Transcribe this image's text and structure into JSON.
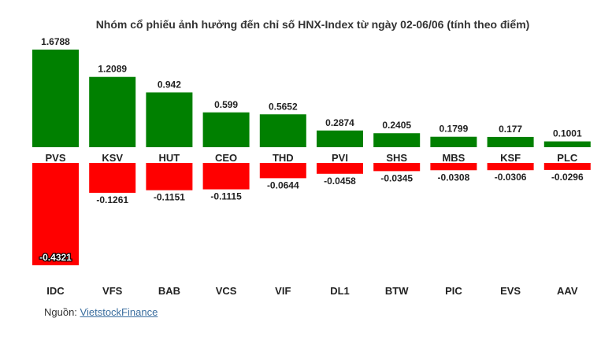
{
  "chart_data": {
    "type": "bar",
    "title": "Nhóm cổ phiếu ảnh hưởng đến chỉ số HNX-Index từ ngày 02-06/06 (tính theo điểm)",
    "xlabel": "",
    "ylabel": "",
    "grid": false,
    "legend": "none",
    "series": [
      {
        "categories": [
          "PVS",
          "KSV",
          "HUT",
          "CEO",
          "THD",
          "PVI",
          "SHS",
          "MBS",
          "KSF",
          "PLC"
        ],
        "values": [
          1.6788,
          1.2089,
          0.942,
          0.599,
          0.5652,
          0.2874,
          0.2405,
          0.1799,
          0.177,
          0.1001
        ],
        "labels": [
          "1.6788",
          "1.2089",
          "0.942",
          "0.599",
          "0.5652",
          "0.2874",
          "0.2405",
          "0.1799",
          "0.177",
          "0.1001"
        ]
      },
      {
        "categories": [
          "IDC",
          "VFS",
          "BAB",
          "VCS",
          "VIF",
          "DL1",
          "BTW",
          "PIC",
          "EVS",
          "AAV"
        ],
        "values": [
          -0.4321,
          -0.1261,
          -0.1151,
          -0.1115,
          -0.0644,
          -0.0458,
          -0.0345,
          -0.0308,
          -0.0306,
          -0.0296
        ],
        "labels": [
          "-0.4321",
          "-0.1261",
          "-0.1151",
          "-0.1115",
          "-0.0644",
          "-0.0458",
          "-0.0345",
          "-0.0308",
          "-0.0306",
          "-0.0296"
        ]
      }
    ]
  },
  "colors": {
    "positive": "#008000",
    "negative": "#ff0000",
    "text": "#222222"
  },
  "source": {
    "prefix": "Nguồn: ",
    "link_text": "VietstockFinance"
  }
}
